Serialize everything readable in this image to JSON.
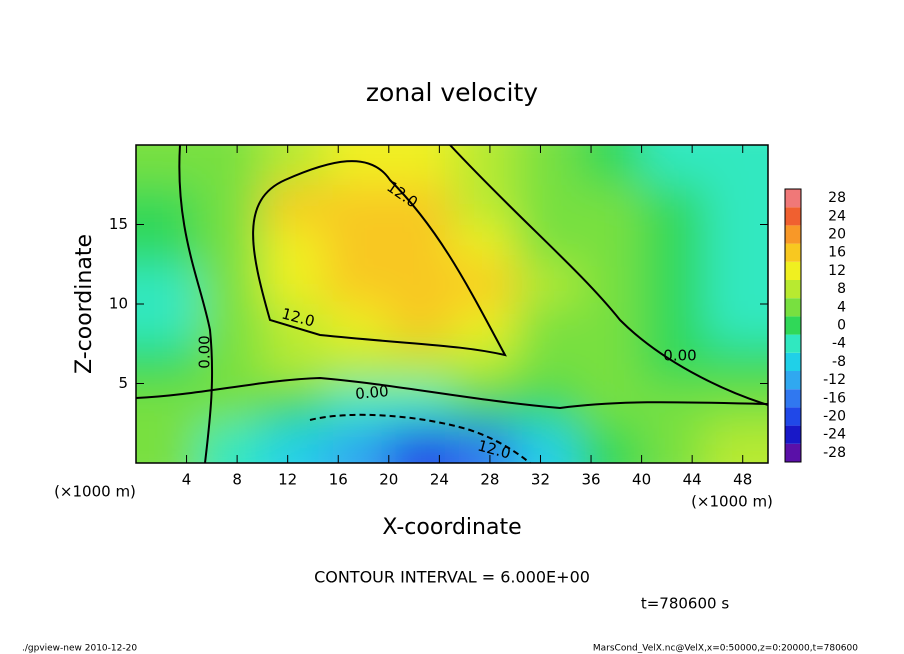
{
  "chart_data": {
    "type": "contour",
    "title": "zonal velocity",
    "x_label": "X-coordinate",
    "y_label": "Z-coordinate",
    "x_unit": "(×1000 m)",
    "y_unit": "(×1000 m)",
    "xlim": [
      0,
      50
    ],
    "ylim": [
      0,
      20
    ],
    "xticks": [
      4,
      8,
      12,
      16,
      20,
      24,
      28,
      32,
      36,
      40,
      44,
      48
    ],
    "yticks": [
      5,
      10,
      15
    ],
    "x": [
      2.5,
      7.5,
      12.5,
      17.5,
      22.5,
      27.5,
      32.5,
      37.5,
      42.5,
      47.5
    ],
    "z": [
      1.25,
      3.75,
      6.25,
      8.75,
      11.25,
      13.75,
      16.25,
      18.75
    ],
    "values": [
      [
        4,
        -6,
        -8,
        -14,
        -20,
        -16,
        -8,
        -2,
        2,
        8
      ],
      [
        2,
        2,
        -2,
        -6,
        -4,
        -2,
        0,
        2,
        2,
        4
      ],
      [
        -2,
        4,
        6,
        6,
        6,
        6,
        4,
        2,
        0,
        -2
      ],
      [
        -4,
        4,
        8,
        12,
        14,
        12,
        4,
        2,
        -2,
        -4
      ],
      [
        -4,
        2,
        10,
        14,
        16,
        14,
        6,
        4,
        0,
        -6
      ],
      [
        -2,
        2,
        12,
        16,
        16,
        12,
        4,
        2,
        0,
        -6
      ],
      [
        0,
        2,
        14,
        16,
        14,
        8,
        4,
        2,
        -2,
        -6
      ],
      [
        2,
        4,
        8,
        10,
        10,
        6,
        4,
        0,
        -4,
        -4
      ]
    ],
    "colorbar": {
      "levels": [
        -30,
        -26,
        -22,
        -18,
        -14,
        -10,
        -6,
        -2,
        2,
        6,
        10,
        14,
        18,
        22,
        26,
        30
      ],
      "colors": [
        "#5a10a8",
        "#1818c8",
        "#2048e8",
        "#3078f0",
        "#30a8f0",
        "#20d0e8",
        "#30e8c0",
        "#30d858",
        "#78e040",
        "#b8ea30",
        "#f0f020",
        "#f8c820",
        "#f89828",
        "#f06030",
        "#f07878"
      ],
      "ticks": [
        -28,
        -24,
        -20,
        -16,
        -12,
        -8,
        -4,
        0,
        4,
        8,
        12,
        16,
        20,
        24,
        28
      ]
    },
    "contour_labels": [
      "12.0",
      "12.0",
      "0.00",
      "0.00",
      "12.0",
      "0.00"
    ],
    "contour_interval": "CONTOUR INTERVAL = 6.000E+00",
    "time_label": "t=780600 s",
    "footer_left": "./gpview-new  2010-12-20",
    "footer_right": "MarsCond_VelX.nc@VelX,x=0:50000,z=0:20000,t=780600"
  }
}
